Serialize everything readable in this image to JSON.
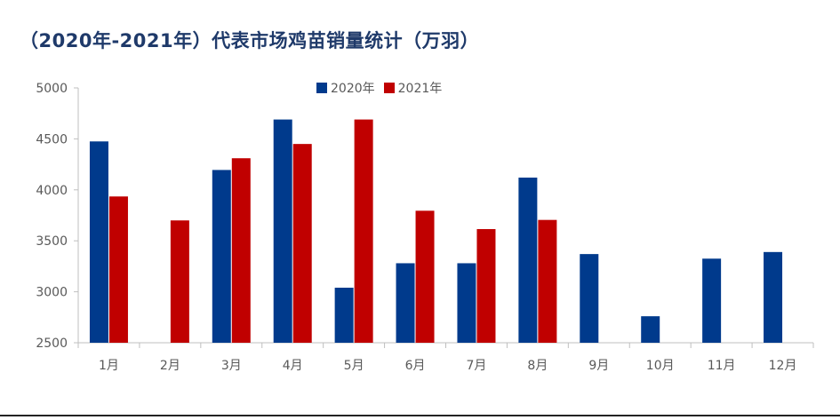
{
  "title": "（2020年-2021年）代表市场鸡苗销量统计（万羽）",
  "chart_data": {
    "type": "bar",
    "title": "（2020年-2021年）代表市场鸡苗销量统计（万羽）",
    "categories": [
      "1月",
      "2月",
      "3月",
      "4月",
      "5月",
      "6月",
      "7月",
      "8月",
      "9月",
      "10月",
      "11月",
      "12月"
    ],
    "series": [
      {
        "name": "2020年",
        "color": "#003a8c",
        "values": [
          4475,
          null,
          4195,
          4690,
          3040,
          3280,
          3280,
          4120,
          3370,
          2760,
          3325,
          3390
        ]
      },
      {
        "name": "2021年",
        "color": "#c00000",
        "values": [
          3935,
          3700,
          4310,
          4450,
          4690,
          3795,
          3615,
          3705,
          null,
          null,
          null,
          null
        ]
      }
    ],
    "ylim": [
      2500,
      5000
    ],
    "yticks": [
      2500,
      3000,
      3500,
      4000,
      4500,
      5000
    ],
    "xlabel": "",
    "ylabel": "",
    "legend": "top-center",
    "grid": false
  }
}
